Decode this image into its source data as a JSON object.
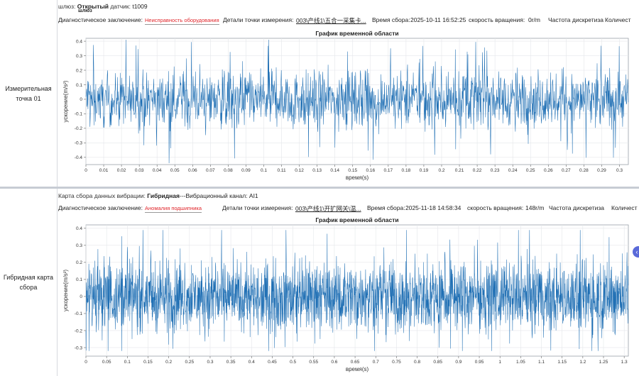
{
  "panel1": {
    "sidebar_label": "Измерительная точка 01",
    "gateway_label": "шлюз:",
    "gateway_value": "Открытый",
    "gateway_sub": "шлюз",
    "sensor_label": "датчик:",
    "sensor_value": "t1009",
    "diag_label": "Диагностическое заключение:",
    "diag_value": "Неисправность оборудования",
    "point_label": "Детали точки измерения:",
    "point_value": "003\\产线1\\五合一采集卡...",
    "time_label": "Время сбора:",
    "time_value": "2025-10-11 16:52:25",
    "speed_label": "скорость вращения:",
    "speed_value": "0r/m",
    "freq_label": "Частота дискретиза",
    "count_label": "Количест",
    "chart_data": {
      "type": "line",
      "title": "График временной области",
      "xlabel": "время(s)",
      "ylabel": "ускорение(m/s²)",
      "xlim": [
        0,
        0.305
      ],
      "ylim": [
        -0.45,
        0.42
      ],
      "x_ticks": [
        0,
        0.01,
        0.02,
        0.03,
        0.04,
        0.05,
        0.06,
        0.07,
        0.08,
        0.09,
        0.1,
        0.11,
        0.12,
        0.13,
        0.14,
        0.15,
        0.16,
        0.17,
        0.18,
        0.19,
        0.2,
        0.21,
        0.22,
        0.23,
        0.24,
        0.25,
        0.26,
        0.27,
        0.28,
        0.29,
        0.3
      ],
      "x_tick_labels": [
        "0",
        "0.01",
        "0.02",
        "0.03",
        "0.04",
        "0.05",
        "0.06",
        "0.07",
        "0.08",
        "0.09",
        "0.1",
        "0.11",
        "0.12",
        "0.13",
        "0.14",
        "0.15",
        "0.16",
        "0.17",
        "0.18",
        "0.19",
        "0.2",
        "0.21",
        "0.22",
        "0.23",
        "0.24",
        "0.25",
        "0.26",
        "0.27",
        "0.28",
        "0.29",
        "0.3"
      ],
      "y_ticks": [
        0.4,
        0.3,
        0.2,
        0.1,
        0,
        -0.1,
        -0.2,
        -0.3,
        -0.4
      ],
      "y_tick_labels": [
        "0.4",
        "0.3",
        "0.2",
        "0.1",
        "0",
        "-0.1",
        "-0.2",
        "-0.3",
        "-0.4"
      ],
      "grid": true,
      "line_color": "#1f6fb4",
      "series": [
        {
          "samples": 1600,
          "noise_amplitude": 0.12,
          "peak_max": 0.41,
          "trough_min": -0.44
        }
      ]
    }
  },
  "panel2": {
    "sidebar_label": "Гибридная карта сбора",
    "map_label": "Карта сбора данных вибрации:",
    "map_value": "Гибридная",
    "channel_text": "---Вибрационный канал: AI1",
    "diag_label": "Диагностическое заключение:",
    "diag_value": "Аномалия подшипника",
    "point_label": "Детали точки измерения:",
    "point_value": "003\\产线1\\开扩网关\\温...",
    "time_label": "Время сбора:",
    "time_value": "2025-11-18 14:58:34",
    "speed_label": "скорость вращения:",
    "speed_value": "148r/m",
    "freq_label": "Частота дискретиза",
    "count_label": "Количест",
    "chart_data": {
      "type": "line",
      "title": "График временной области",
      "xlabel": "время(s)",
      "ylabel": "ускорение(m/s²)",
      "xlim": [
        0,
        1.31
      ],
      "ylim": [
        -0.35,
        0.42
      ],
      "x_ticks": [
        0,
        0.05,
        0.1,
        0.15,
        0.2,
        0.25,
        0.3,
        0.35,
        0.4,
        0.45,
        0.5,
        0.55,
        0.6,
        0.65,
        0.7,
        0.75,
        0.8,
        0.85,
        0.9,
        0.95,
        1,
        1.05,
        1.1,
        1.15,
        1.2,
        1.25,
        1.3
      ],
      "x_tick_labels": [
        "0",
        "0.05",
        "0.1",
        "0.15",
        "0.2",
        "0.25",
        "0.3",
        "0.35",
        "0.4",
        "0.45",
        "0.5",
        "0.55",
        "0.6",
        "0.65",
        "0.7",
        "0.75",
        "0.8",
        "0.85",
        "0.9",
        "0.95",
        "1",
        "1.05",
        "1.1",
        "1.15",
        "1.2",
        "1.25",
        "1.3"
      ],
      "y_ticks": [
        0.4,
        0.3,
        0.2,
        0.1,
        0,
        -0.1,
        -0.2,
        -0.3
      ],
      "y_tick_labels": [
        "0.4",
        "0.3",
        "0.2",
        "0.1",
        "0",
        "-0.1",
        "-0.2",
        "-0.3"
      ],
      "grid": true,
      "line_color": "#1f6fb4",
      "series": [
        {
          "samples": 2400,
          "noise_amplitude": 0.12,
          "impulse_period_s": 0.0142,
          "peak_max": 0.39,
          "trough_min": -0.32
        }
      ]
    }
  },
  "collapse_glyph": "‹"
}
